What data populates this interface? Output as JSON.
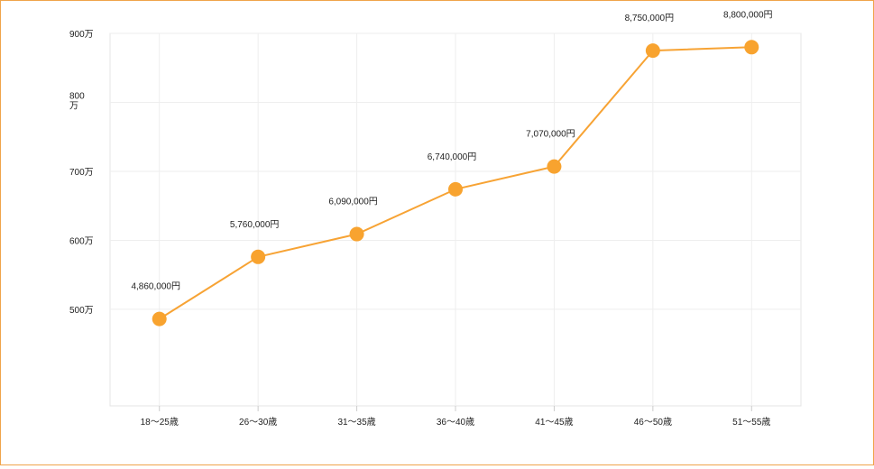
{
  "chart_data": {
    "type": "line",
    "title": "",
    "xlabel": "",
    "ylabel": "",
    "categories": [
      "18〜25歳",
      "26〜30歳",
      "31〜35歳",
      "36〜40歳",
      "41〜45歳",
      "46〜50歳",
      "51〜55歳"
    ],
    "series": [
      {
        "values": [
          4860000,
          5760000,
          6090000,
          6740000,
          7070000,
          8750000,
          8800000
        ],
        "labels": [
          "4,860,000円",
          "5,760,000円",
          "6,090,000円",
          "6,740,000円",
          "7,070,000円",
          "8,750,000円",
          "8,800,000円"
        ]
      }
    ],
    "y_ticks": [
      {
        "value": 5000000,
        "label": "500万"
      },
      {
        "value": 6000000,
        "label": "600万"
      },
      {
        "value": 7000000,
        "label": "700万"
      },
      {
        "value": 8000000,
        "label": "800万"
      },
      {
        "value": 9000000,
        "label": "900万"
      }
    ],
    "ylim": [
      3600000,
      9000000
    ],
    "grid": true,
    "legend": "none",
    "colors": {
      "line": "#f7a334",
      "marker": "#f8a32f",
      "grid": "#eeeeee",
      "border": "#f0a44a"
    }
  }
}
